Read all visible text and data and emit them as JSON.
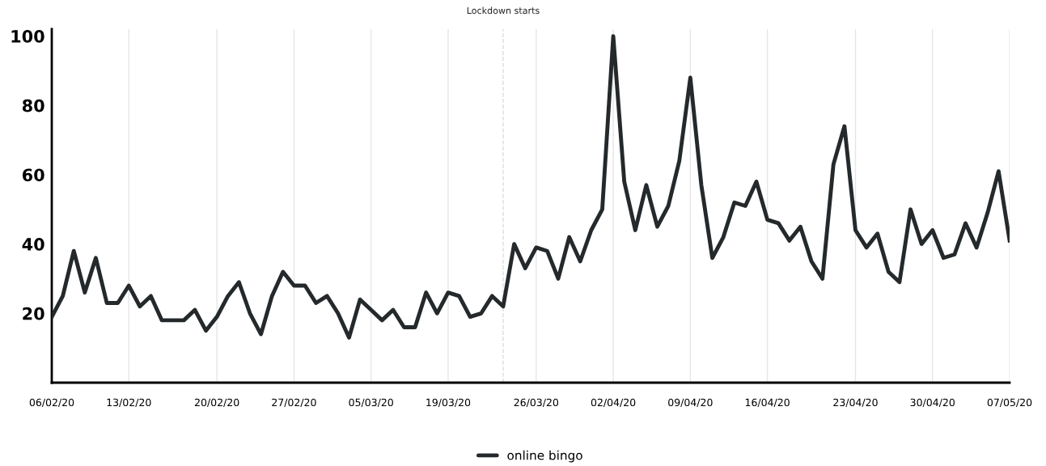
{
  "chart_data": {
    "type": "line",
    "categories": [
      "06/02/20",
      null,
      null,
      null,
      null,
      null,
      null,
      "13/02/20",
      null,
      null,
      null,
      null,
      null,
      null,
      null,
      "20/02/20",
      null,
      null,
      null,
      null,
      null,
      null,
      "27/02/20",
      null,
      null,
      null,
      null,
      null,
      null,
      "05/03/20",
      null,
      null,
      null,
      null,
      null,
      null,
      "19/03/20",
      null,
      null,
      null,
      null,
      null,
      null,
      null,
      "26/03/20",
      null,
      null,
      null,
      null,
      null,
      null,
      "02/04/20",
      null,
      null,
      null,
      null,
      null,
      null,
      "09/04/20",
      null,
      null,
      null,
      null,
      null,
      null,
      "16/04/20",
      null,
      null,
      null,
      null,
      null,
      null,
      null,
      "23/04/20",
      null,
      null,
      null,
      null,
      null,
      null,
      "30/04/20",
      null,
      null,
      null,
      null,
      null,
      null,
      "07/05/20"
    ],
    "series": [
      {
        "name": "online bingo",
        "color": "#24292c",
        "values": [
          19,
          25,
          38,
          26,
          36,
          23,
          23,
          28,
          22,
          25,
          18,
          18,
          18,
          21,
          15,
          19,
          25,
          29,
          20,
          14,
          25,
          32,
          28,
          28,
          23,
          25,
          20,
          13,
          24,
          21,
          18,
          21,
          16,
          16,
          26,
          20,
          26,
          25,
          19,
          20,
          25,
          22,
          40,
          33,
          39,
          38,
          30,
          42,
          35,
          44,
          50,
          100,
          58,
          44,
          57,
          45,
          51,
          64,
          88,
          57,
          36,
          42,
          52,
          51,
          58,
          47,
          46,
          41,
          45,
          35,
          30,
          63,
          74,
          44,
          39,
          43,
          32,
          29,
          50,
          40,
          44,
          36,
          37,
          46,
          39,
          49,
          61,
          41
        ]
      }
    ],
    "ylim": [
      0,
      102
    ],
    "yticks": [
      20,
      40,
      60,
      80,
      100
    ],
    "annotations": [
      "Lockdown starts"
    ],
    "grid": "x",
    "legend": "bottom",
    "marker": "none",
    "line_style": "solid"
  }
}
